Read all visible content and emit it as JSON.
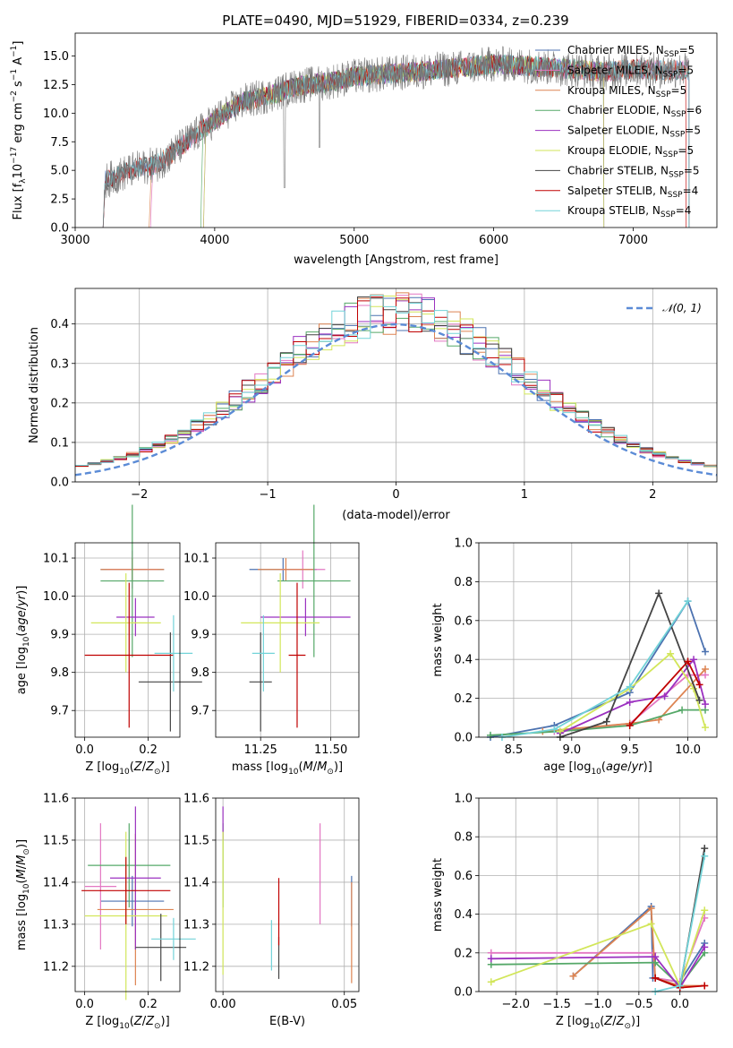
{
  "colors": {
    "Chabrier MILES": "#4c72b0",
    "Salpeter MILES": "#e377c2",
    "Kroupa MILES": "#dd8452",
    "Chabrier ELODIE": "#55a868",
    "Salpeter ELODIE": "#9b30c0",
    "Kroupa ELODIE": "#d2e65a",
    "Chabrier STELIB": "#444444",
    "Salpeter STELIB": "#c00000",
    "Kroupa STELIB": "#72d3d8"
  },
  "chart_data": [
    {
      "id": "spectrum",
      "type": "line",
      "title": "PLATE=0490, MJD=51929, FIBERID=0334, z=0.239",
      "xlabel": "wavelength [Angstrom, rest frame]",
      "ylabel": "Flux [f_λ 10^-17 erg cm^-2 s^-1 A^-1]",
      "xlim": [
        3000,
        7600
      ],
      "ylim": [
        0,
        17
      ],
      "xticks": [
        3000,
        4000,
        5000,
        6000,
        7000
      ],
      "yticks": [
        0.0,
        2.5,
        5.0,
        7.5,
        10.0,
        12.5,
        15.0
      ],
      "legend_position": "top-right",
      "legend": [
        {
          "model": "Chabrier MILES",
          "nssp": "5"
        },
        {
          "model": "Salpeter MILES",
          "nssp": "5"
        },
        {
          "model": "Kroupa MILES",
          "nssp": "5"
        },
        {
          "model": "Chabrier ELODIE",
          "nssp": "6"
        },
        {
          "model": "Salpeter ELODIE",
          "nssp": "5"
        },
        {
          "model": "Kroupa ELODIE",
          "nssp": "5"
        },
        {
          "model": "Chabrier STELIB",
          "nssp": "5"
        },
        {
          "model": "Salpeter STELIB",
          "nssp": "4"
        },
        {
          "model": "Kroupa STELIB",
          "nssp": "4"
        }
      ],
      "data_range": [
        3200,
        7400
      ],
      "continuum": {
        "x": [
          3200,
          3400,
          3600,
          3800,
          4000,
          4200,
          4400,
          4600,
          4800,
          5000,
          5200,
          5400,
          5600,
          5800,
          6000,
          6200,
          6400,
          6600,
          6800,
          7000,
          7200,
          7400
        ],
        "y": [
          4.0,
          5.0,
          5.6,
          7.5,
          9.4,
          11.0,
          11.6,
          12.4,
          12.7,
          13.2,
          13.4,
          13.6,
          13.8,
          14.0,
          14.3,
          14.2,
          14.0,
          13.8,
          13.6,
          13.9,
          13.7,
          13.8
        ]
      }
    },
    {
      "id": "residuals",
      "type": "step",
      "xlabel": "(data-model)/error",
      "ylabel": "Normed distribution",
      "xlim": [
        -2.5,
        2.5
      ],
      "ylim": [
        0,
        0.49
      ],
      "xticks": [
        -2,
        -1,
        0,
        1,
        2
      ],
      "yticks": [
        0.0,
        0.1,
        0.2,
        0.3,
        0.4
      ],
      "bin_width": 0.1,
      "legend_position": "top-right",
      "gaussian_label": "𝒩(0, 1)"
    },
    {
      "id": "age-vs-Z",
      "type": "errorbar",
      "xlabel": "Z [log10(Z/Z⊙)]",
      "ylabel": "age  [log10(age/yr)]",
      "xlim": [
        -0.03,
        0.3
      ],
      "ylim": [
        9.63,
        10.14
      ],
      "xticks": [
        0.0,
        0.2
      ],
      "yticks": [
        9.7,
        9.8,
        9.9,
        10.0,
        10.1
      ],
      "points": [
        {
          "model": "Chabrier MILES",
          "x": 0.15,
          "xerr": 0.1,
          "y": 10.07,
          "yerr": 0.03
        },
        {
          "model": "Salpeter MILES",
          "x": 0.15,
          "xerr": 0.08,
          "y": 10.07,
          "yerr": 0.05
        },
        {
          "model": "Kroupa MILES",
          "x": 0.15,
          "xerr": 0.1,
          "y": 10.07,
          "yerr": 0.03
        },
        {
          "model": "Chabrier ELODIE",
          "x": 0.15,
          "xerr": 0.1,
          "y": 10.04,
          "yerr": 0.2
        },
        {
          "model": "Salpeter ELODIE",
          "x": 0.16,
          "xerr": 0.06,
          "y": 9.945,
          "yerr": 0.05
        },
        {
          "model": "Kroupa ELODIE",
          "x": 0.13,
          "xerr": 0.11,
          "y": 9.93,
          "yerr": 0.13
        },
        {
          "model": "Chabrier STELIB",
          "x": 0.27,
          "xerr": 0.1,
          "y": 9.775,
          "yerr": 0.13
        },
        {
          "model": "Salpeter STELIB",
          "x": 0.14,
          "xerr": 0.14,
          "y": 9.845,
          "yerr": 0.19
        },
        {
          "model": "Kroupa STELIB",
          "x": 0.28,
          "xerr": 0.06,
          "y": 9.85,
          "yerr": 0.1
        }
      ]
    },
    {
      "id": "age-vs-mass",
      "type": "errorbar",
      "xlabel": "mass [log10(M/M⊙)]",
      "ylim": [
        9.63,
        10.14
      ],
      "xlim": [
        11.09,
        11.6
      ],
      "xticks": [
        11.25,
        11.5
      ],
      "yticks": [
        9.7,
        9.8,
        9.9,
        10.0,
        10.1
      ],
      "points": [
        {
          "model": "Chabrier MILES",
          "x": 11.33,
          "xerr": 0.12,
          "y": 10.07,
          "yerr": 0.03
        },
        {
          "model": "Salpeter MILES",
          "x": 11.4,
          "xerr": 0.08,
          "y": 10.07,
          "yerr": 0.05
        },
        {
          "model": "Kroupa MILES",
          "x": 11.34,
          "xerr": 0.1,
          "y": 10.07,
          "yerr": 0.03
        },
        {
          "model": "Chabrier ELODIE",
          "x": 11.44,
          "xerr": 0.13,
          "y": 10.04,
          "yerr": 0.2
        },
        {
          "model": "Salpeter ELODIE",
          "x": 11.41,
          "xerr": 0.16,
          "y": 9.945,
          "yerr": 0.05
        },
        {
          "model": "Kroupa ELODIE",
          "x": 11.32,
          "xerr": 0.14,
          "y": 9.93,
          "yerr": 0.13
        },
        {
          "model": "Chabrier STELIB",
          "x": 11.25,
          "xerr": 0.04,
          "y": 9.775,
          "yerr": 0.13
        },
        {
          "model": "Salpeter STELIB",
          "x": 11.38,
          "xerr": 0.03,
          "y": 9.845,
          "yerr": 0.19
        },
        {
          "model": "Kroupa STELIB",
          "x": 11.26,
          "xerr": 0.04,
          "y": 9.85,
          "yerr": 0.1
        }
      ]
    },
    {
      "id": "weight-vs-age",
      "type": "line",
      "xlabel": "age  [log10(age/yr)]",
      "ylabel": "mass weight",
      "xlim": [
        8.2,
        10.25
      ],
      "ylim": [
        0,
        1
      ],
      "xticks": [
        8.5,
        9.0,
        9.5,
        10.0
      ],
      "yticks": [
        0.0,
        0.2,
        0.4,
        0.6,
        0.8,
        1.0
      ],
      "series": [
        {
          "model": "Chabrier MILES",
          "x": [
            8.3,
            8.85,
            9.5,
            10.0,
            10.15
          ],
          "y": [
            0.0,
            0.06,
            0.23,
            0.7,
            0.44
          ]
        },
        {
          "model": "Salpeter MILES",
          "x": [
            8.85,
            9.5,
            10.0,
            10.15
          ],
          "y": [
            0.03,
            0.07,
            0.32,
            0.32
          ]
        },
        {
          "model": "Kroupa MILES",
          "x": [
            8.75,
            9.5,
            9.75,
            10.15
          ],
          "y": [
            0.03,
            0.07,
            0.09,
            0.35
          ]
        },
        {
          "model": "Chabrier ELODIE",
          "x": [
            8.3,
            8.9,
            9.5,
            9.95,
            10.15
          ],
          "y": [
            0.01,
            0.03,
            0.06,
            0.14,
            0.14
          ]
        },
        {
          "model": "Salpeter ELODIE",
          "x": [
            8.9,
            9.5,
            9.8,
            10.05,
            10.15
          ],
          "y": [
            0.02,
            0.18,
            0.21,
            0.4,
            0.17
          ]
        },
        {
          "model": "Kroupa ELODIE",
          "x": [
            8.9,
            9.5,
            9.85,
            10.05,
            10.15
          ],
          "y": [
            0.03,
            0.25,
            0.43,
            0.25,
            0.05
          ]
        },
        {
          "model": "Chabrier STELIB",
          "x": [
            8.9,
            9.3,
            9.75,
            10.1
          ],
          "y": [
            0.0,
            0.08,
            0.74,
            0.19
          ]
        },
        {
          "model": "Salpeter STELIB",
          "x": [
            9.5,
            10.0,
            10.1
          ],
          "y": [
            0.06,
            0.39,
            0.27
          ]
        },
        {
          "model": "Kroupa STELIB",
          "x": [
            8.4,
            8.85,
            9.5,
            10.0
          ],
          "y": [
            0.0,
            0.04,
            0.26,
            0.7
          ]
        }
      ]
    },
    {
      "id": "mass-vs-Z",
      "type": "errorbar",
      "xlabel": "Z [log10(Z/Z⊙)]",
      "ylabel": "mass [log10(M/M⊙)]",
      "xlim": [
        -0.03,
        0.3
      ],
      "ylim": [
        11.14,
        11.6
      ],
      "xticks": [
        0.0,
        0.2
      ],
      "yticks": [
        11.2,
        11.3,
        11.4,
        11.5,
        11.6
      ],
      "points": [
        {
          "model": "Chabrier MILES",
          "x": 0.15,
          "xerr": 0.1,
          "y": 11.355,
          "yerr": 0.06
        },
        {
          "model": "Salpeter MILES",
          "x": 0.05,
          "xerr": 0.05,
          "y": 11.39,
          "yerr": 0.15
        },
        {
          "model": "Kroupa MILES",
          "x": 0.16,
          "xerr": 0.12,
          "y": 11.335,
          "yerr": 0.18
        },
        {
          "model": "Chabrier ELODIE",
          "x": 0.14,
          "xerr": 0.13,
          "y": 11.44,
          "yerr": 0.1
        },
        {
          "model": "Salpeter ELODIE",
          "x": 0.16,
          "xerr": 0.08,
          "y": 11.41,
          "yerr": 0.17
        },
        {
          "model": "Kroupa ELODIE",
          "x": 0.13,
          "xerr": 0.13,
          "y": 11.32,
          "yerr": 0.2
        },
        {
          "model": "Chabrier STELIB",
          "x": 0.24,
          "xerr": 0.08,
          "y": 11.245,
          "yerr": 0.08
        },
        {
          "model": "Salpeter STELIB",
          "x": 0.13,
          "xerr": 0.14,
          "y": 11.38,
          "yerr": 0.08
        },
        {
          "model": "Kroupa STELIB",
          "x": 0.28,
          "xerr": 0.07,
          "y": 11.265,
          "yerr": 0.05
        }
      ]
    },
    {
      "id": "mass-vs-ebv",
      "type": "errorbar",
      "xlabel": "E(B-V)",
      "xlim": [
        -0.003,
        0.056
      ],
      "ylim": [
        11.14,
        11.6
      ],
      "xticks": [
        0.0,
        0.05
      ],
      "yticks": [
        11.2,
        11.3,
        11.4,
        11.5,
        11.6
      ],
      "points": [
        {
          "model": "Chabrier MILES",
          "x": 0.053,
          "xerr": 0,
          "y": 11.355,
          "yerr": 0.06
        },
        {
          "model": "Salpeter MILES",
          "x": 0.04,
          "xerr": 0,
          "y": 11.42,
          "yerr": 0.12
        },
        {
          "model": "Kroupa MILES",
          "x": 0.053,
          "xerr": 0,
          "y": 11.28,
          "yerr": 0.12
        },
        {
          "model": "Chabrier ELODIE",
          "x": 0.0,
          "xerr": 0,
          "y": 11.44,
          "yerr": 0.1
        },
        {
          "model": "Salpeter ELODIE",
          "x": 0.0,
          "xerr": 0,
          "y": 11.54,
          "yerr": 0.04
        },
        {
          "model": "Kroupa ELODIE",
          "x": 0.0,
          "xerr": 0,
          "y": 11.35,
          "yerr": 0.17
        },
        {
          "model": "Chabrier STELIB",
          "x": 0.023,
          "xerr": 0,
          "y": 11.22,
          "yerr": 0.05
        },
        {
          "model": "Salpeter STELIB",
          "x": 0.023,
          "xerr": 0,
          "y": 11.33,
          "yerr": 0.08
        },
        {
          "model": "Kroupa STELIB",
          "x": 0.02,
          "xerr": 0,
          "y": 11.25,
          "yerr": 0.06
        }
      ]
    },
    {
      "id": "weight-vs-Z",
      "type": "line",
      "xlabel": "Z [log10(Z/Z⊙)]",
      "ylabel": "mass weight",
      "xlim": [
        -2.45,
        0.45
      ],
      "ylim": [
        0,
        1
      ],
      "xticks": [
        -2.0,
        -1.5,
        -1.0,
        -0.5,
        0.0
      ],
      "yticks": [
        0.0,
        0.2,
        0.4,
        0.6,
        0.8,
        1.0
      ],
      "series": [
        {
          "model": "Chabrier MILES",
          "x": [
            -1.3,
            -0.35,
            -0.33,
            0.0,
            0.3
          ],
          "y": [
            0.08,
            0.44,
            0.07,
            0.05,
            0.25
          ]
        },
        {
          "model": "Salpeter MILES",
          "x": [
            -2.3,
            -0.33,
            -0.3,
            0.0,
            0.3
          ],
          "y": [
            0.2,
            0.2,
            0.07,
            0.05,
            0.38
          ]
        },
        {
          "model": "Kroupa MILES",
          "x": [
            -1.3,
            -0.35,
            -0.3,
            0.0,
            0.3
          ],
          "y": [
            0.08,
            0.43,
            0.07,
            0.03,
            0.03
          ]
        },
        {
          "model": "Chabrier ELODIE",
          "x": [
            -2.3,
            -0.3,
            0.0,
            0.3
          ],
          "y": [
            0.14,
            0.15,
            0.03,
            0.2
          ]
        },
        {
          "model": "Salpeter ELODIE",
          "x": [
            -2.3,
            -0.3,
            0.0,
            0.3
          ],
          "y": [
            0.17,
            0.18,
            0.02,
            0.23
          ]
        },
        {
          "model": "Kroupa ELODIE",
          "x": [
            -2.3,
            -0.35,
            0.0,
            0.3
          ],
          "y": [
            0.05,
            0.35,
            0.03,
            0.42
          ]
        },
        {
          "model": "Chabrier STELIB",
          "x": [
            -0.3,
            0.0,
            0.3
          ],
          "y": [
            0.07,
            0.02,
            0.74
          ]
        },
        {
          "model": "Salpeter STELIB",
          "x": [
            -0.3,
            0.0,
            0.3
          ],
          "y": [
            0.07,
            0.02,
            0.03
          ]
        },
        {
          "model": "Kroupa STELIB",
          "x": [
            -0.3,
            0.0,
            0.3
          ],
          "y": [
            0.0,
            0.03,
            0.7
          ]
        }
      ]
    }
  ]
}
